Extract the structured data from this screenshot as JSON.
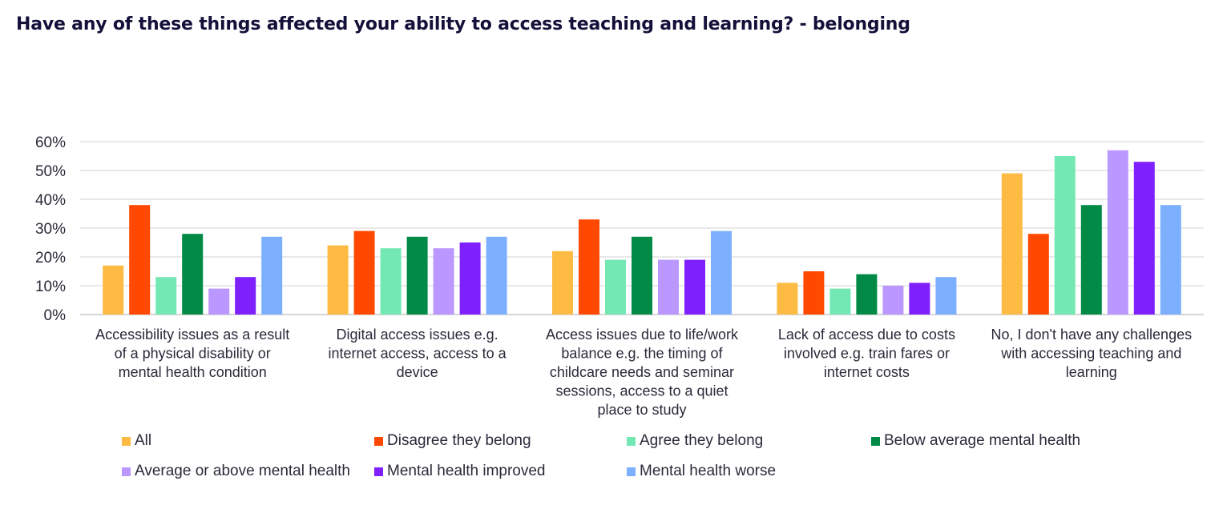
{
  "chart_data": {
    "type": "bar",
    "title": "Have any of these things affected your ability to access teaching and learning? - belonging",
    "categories": [
      "Accessibility issues as a result of a physical disability or mental health condition",
      "Digital access issues e.g. internet access, access to a device",
      "Access issues due to life/work balance e.g. the timing of childcare needs and seminar sessions,  access to a quiet place to study",
      "Lack of access due to costs involved e.g. train fares or internet costs",
      "No, I don't have any challenges with accessing teaching and learning"
    ],
    "category_lines": [
      [
        "Accessibility issues as a result",
        "of a physical disability or",
        "mental health condition"
      ],
      [
        "Digital access issues e.g.",
        "internet access, access to a",
        "device"
      ],
      [
        "Access issues due to life/work",
        "balance e.g. the timing of",
        "childcare needs and seminar",
        "sessions,  access to a quiet",
        "place to study"
      ],
      [
        "Lack of access due to costs",
        "involved e.g. train fares or",
        "internet costs"
      ],
      [
        "No, I don't have any challenges",
        "with accessing teaching and",
        "learning"
      ]
    ],
    "series": [
      {
        "name": "All",
        "color": "#FDBB43",
        "values": [
          17,
          24,
          22,
          11,
          49
        ]
      },
      {
        "name": "Disagree they belong",
        "color": "#FF4800",
        "values": [
          38,
          29,
          33,
          15,
          28
        ]
      },
      {
        "name": "Agree they belong",
        "color": "#74E8B4",
        "values": [
          13,
          23,
          19,
          9,
          55
        ]
      },
      {
        "name": "Below average mental health",
        "color": "#008A46",
        "values": [
          28,
          27,
          27,
          14,
          38
        ]
      },
      {
        "name": "Average or above mental health",
        "color": "#BB98FF",
        "values": [
          9,
          23,
          19,
          10,
          57
        ]
      },
      {
        "name": "Mental health improved",
        "color": "#7F21FF",
        "values": [
          13,
          25,
          19,
          11,
          53
        ]
      },
      {
        "name": "Mental health worse",
        "color": "#7CB0FF",
        "values": [
          27,
          27,
          29,
          13,
          38
        ]
      }
    ],
    "y_ticks": [
      "0%",
      "10%",
      "20%",
      "30%",
      "40%",
      "50%",
      "60%"
    ],
    "ylim": [
      0,
      60
    ],
    "grid": true,
    "legend_position": "bottom"
  }
}
